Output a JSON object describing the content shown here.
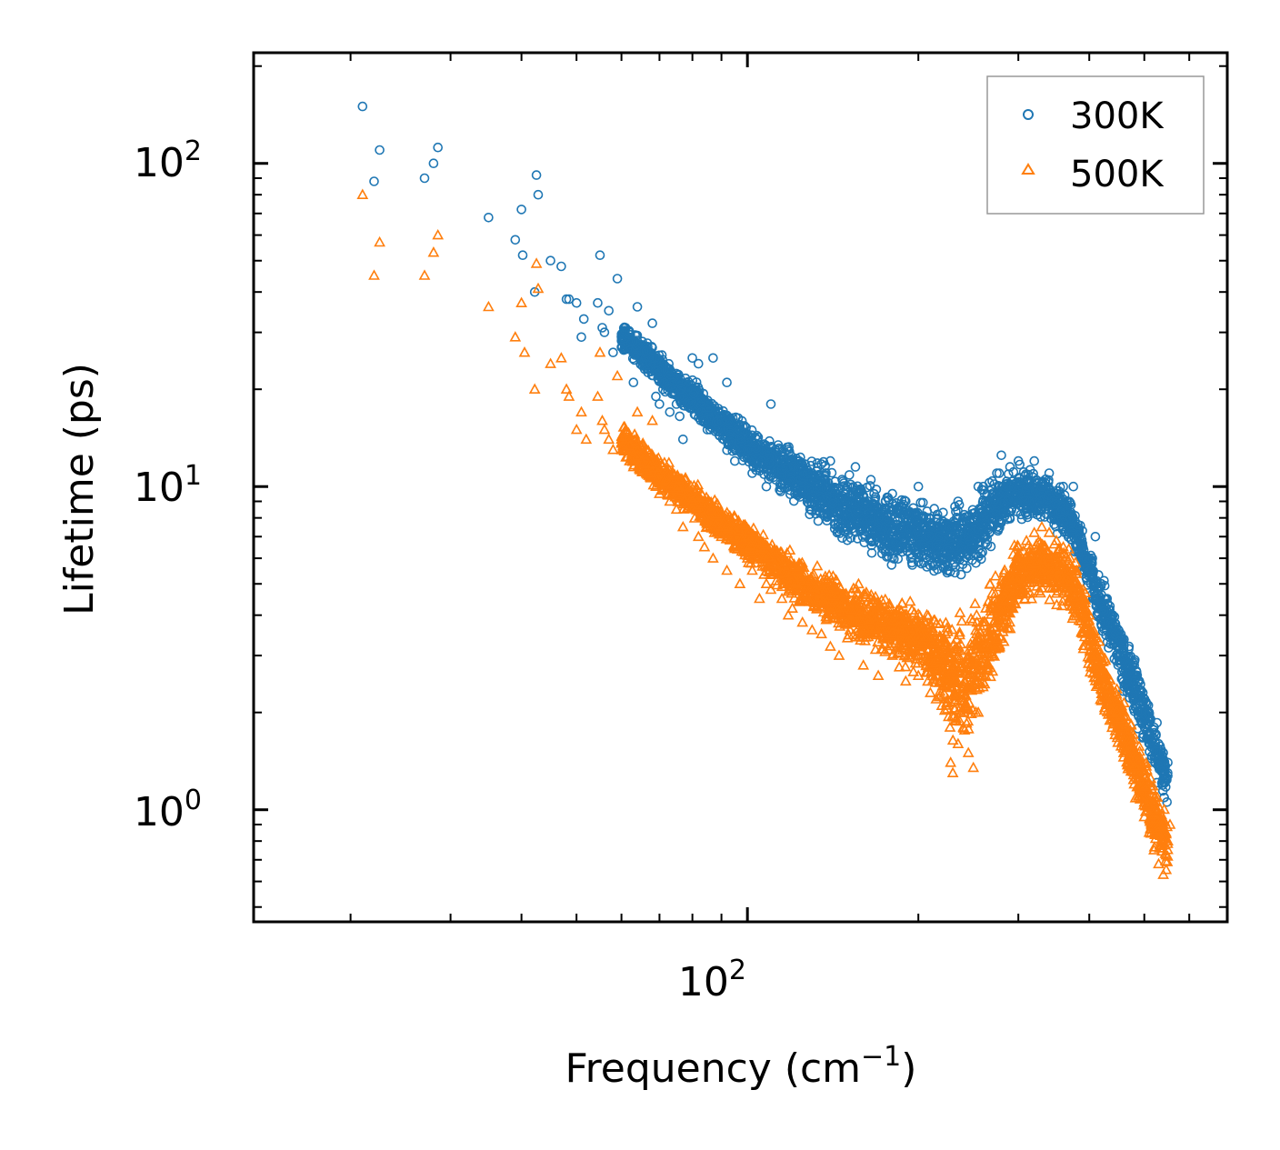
{
  "chart_data": {
    "type": "scatter",
    "xscale": "log",
    "yscale": "log",
    "xlabel": "Frequency (cm",
    "xlabel_sup": "−1",
    "xlabel_suffix": ")",
    "ylabel": "Lifetime (ps)",
    "xlim": [
      13.5,
      700
    ],
    "ylim": [
      0.45,
      220
    ],
    "x_tick_labels": [
      {
        "value": 100,
        "base": "10",
        "exp": "2"
      }
    ],
    "y_tick_labels": [
      {
        "value": 1,
        "base": "10",
        "exp": "0"
      },
      {
        "value": 10,
        "base": "10",
        "exp": "1"
      },
      {
        "value": 100,
        "base": "10",
        "exp": "2"
      }
    ],
    "legend_position": "top-right",
    "series": [
      {
        "name": "300K",
        "marker": "circle",
        "color": "#1f77b4",
        "points": [
          [
            21,
            150
          ],
          [
            22,
            88
          ],
          [
            22.5,
            110
          ],
          [
            27,
            90
          ],
          [
            28,
            100
          ],
          [
            28.5,
            112
          ],
          [
            35,
            68
          ],
          [
            39,
            58
          ],
          [
            40,
            72
          ],
          [
            40.2,
            52
          ],
          [
            42.2,
            40
          ],
          [
            42.5,
            92
          ],
          [
            42.8,
            80
          ],
          [
            45,
            50
          ],
          [
            47,
            48
          ],
          [
            48,
            38
          ],
          [
            48.5,
            38
          ],
          [
            50,
            37
          ],
          [
            51,
            29
          ],
          [
            51.5,
            33
          ],
          [
            54.5,
            37
          ],
          [
            55,
            52
          ],
          [
            55.5,
            31
          ],
          [
            56,
            30
          ],
          [
            57,
            35
          ],
          [
            58,
            26
          ],
          [
            59,
            44
          ],
          [
            60,
            27
          ],
          [
            61,
            31
          ],
          [
            62,
            30
          ],
          [
            63,
            21
          ],
          [
            64,
            36
          ],
          [
            65,
            25
          ],
          [
            67,
            23
          ],
          [
            68,
            32
          ],
          [
            69,
            19
          ],
          [
            70,
            18
          ],
          [
            71,
            20
          ],
          [
            73,
            17
          ],
          [
            74,
            21
          ],
          [
            75,
            18
          ],
          [
            76,
            16.5
          ],
          [
            77,
            14
          ],
          [
            78,
            21
          ],
          [
            80,
            25
          ],
          [
            82,
            24
          ],
          [
            83,
            17
          ],
          [
            84,
            16
          ],
          [
            85,
            15
          ],
          [
            87,
            25
          ],
          [
            90,
            16
          ],
          [
            92,
            21
          ],
          [
            93,
            14.5
          ],
          [
            95,
            12
          ],
          [
            97,
            15
          ],
          [
            100,
            13
          ],
          [
            102,
            11
          ],
          [
            104,
            14
          ],
          [
            106,
            12
          ],
          [
            108,
            10
          ],
          [
            110,
            18
          ],
          [
            112,
            13
          ],
          [
            115,
            11
          ],
          [
            118,
            13
          ],
          [
            120,
            12
          ],
          [
            125,
            10
          ],
          [
            130,
            11
          ],
          [
            135,
            9
          ],
          [
            140,
            12
          ],
          [
            145,
            8
          ],
          [
            150,
            10
          ],
          [
            155,
            11.5
          ],
          [
            160,
            9
          ],
          [
            165,
            10.5
          ],
          [
            170,
            8
          ],
          [
            175,
            9
          ],
          [
            180,
            9.5
          ],
          [
            185,
            8.5
          ],
          [
            190,
            9
          ],
          [
            195,
            7
          ],
          [
            200,
            10
          ],
          [
            205,
            6.5
          ],
          [
            210,
            7.5
          ],
          [
            215,
            6.5
          ],
          [
            225,
            6
          ],
          [
            235,
            9
          ],
          [
            240,
            8
          ],
          [
            245,
            7
          ],
          [
            255,
            10
          ],
          [
            265,
            9
          ],
          [
            275,
            11
          ],
          [
            280,
            12.5
          ],
          [
            285,
            10
          ],
          [
            290,
            11.5
          ],
          [
            300,
            12
          ],
          [
            310,
            10.5
          ],
          [
            320,
            12
          ],
          [
            330,
            10
          ],
          [
            340,
            11
          ],
          [
            350,
            9.5
          ],
          [
            360,
            10
          ],
          [
            370,
            8
          ],
          [
            375,
            10
          ],
          [
            380,
            7
          ],
          [
            390,
            6.5
          ],
          [
            400,
            6
          ],
          [
            405,
            6
          ],
          [
            410,
            7
          ],
          [
            420,
            5
          ],
          [
            430,
            4.5
          ],
          [
            440,
            4
          ],
          [
            450,
            3.6
          ],
          [
            460,
            3
          ],
          [
            470,
            3.2
          ],
          [
            480,
            2.8
          ],
          [
            490,
            2.5
          ],
          [
            500,
            2.2
          ],
          [
            510,
            2
          ],
          [
            520,
            1.8
          ],
          [
            530,
            1.6
          ],
          [
            540,
            1.5
          ],
          [
            550,
            1.4
          ]
        ],
        "band": {
          "x": [
            60,
            80,
            100,
            120,
            150,
            180,
            210,
            230,
            250,
            270,
            300,
            330,
            360,
            380,
            400,
            430,
            460,
            490,
            520,
            550
          ],
          "lo": [
            26,
            16,
            11,
            8.6,
            6.4,
            5.4,
            5.2,
            5.0,
            5.2,
            6.3,
            7.5,
            7.6,
            6.8,
            6.0,
            4.2,
            3.0,
            2.2,
            1.7,
            1.25,
            0.95
          ],
          "hi": [
            33,
            22,
            16,
            13.5,
            11.5,
            10,
            9.3,
            8.8,
            9.7,
            11.5,
            12.3,
            11.5,
            10.2,
            8.8,
            6.8,
            5.0,
            3.8,
            2.8,
            2.1,
            1.6
          ]
        }
      },
      {
        "name": "500K",
        "marker": "triangle",
        "color": "#ff7f0e",
        "points": [
          [
            21,
            80
          ],
          [
            22,
            45
          ],
          [
            22.5,
            57
          ],
          [
            27,
            45
          ],
          [
            28,
            53
          ],
          [
            28.5,
            60
          ],
          [
            35,
            36
          ],
          [
            39,
            29
          ],
          [
            40,
            37
          ],
          [
            40.5,
            26
          ],
          [
            42.2,
            20
          ],
          [
            42.5,
            49
          ],
          [
            42.8,
            41
          ],
          [
            45,
            24
          ],
          [
            47,
            25
          ],
          [
            48,
            20
          ],
          [
            48.5,
            19
          ],
          [
            50,
            15
          ],
          [
            51,
            17
          ],
          [
            52,
            14
          ],
          [
            54.5,
            19
          ],
          [
            55,
            26
          ],
          [
            55.5,
            16
          ],
          [
            56,
            15
          ],
          [
            57,
            14
          ],
          [
            58,
            13
          ],
          [
            59,
            22
          ],
          [
            60,
            14
          ],
          [
            61,
            15
          ],
          [
            62,
            12
          ],
          [
            63,
            11.5
          ],
          [
            64,
            17
          ],
          [
            65,
            12
          ],
          [
            67,
            11
          ],
          [
            68,
            16
          ],
          [
            69,
            10
          ],
          [
            70,
            9.5
          ],
          [
            71,
            10.5
          ],
          [
            73,
            9
          ],
          [
            74,
            11
          ],
          [
            75,
            8.5
          ],
          [
            77,
            7.5
          ],
          [
            78,
            10
          ],
          [
            80,
            9
          ],
          [
            82,
            7
          ],
          [
            83,
            8
          ],
          [
            84,
            6.5
          ],
          [
            85,
            7.5
          ],
          [
            87,
            6
          ],
          [
            90,
            7
          ],
          [
            92,
            5.5
          ],
          [
            95,
            6.5
          ],
          [
            97,
            5
          ],
          [
            100,
            6
          ],
          [
            102,
            5.5
          ],
          [
            105,
            4.5
          ],
          [
            108,
            5
          ],
          [
            110,
            4.8
          ],
          [
            115,
            4.5
          ],
          [
            118,
            4
          ],
          [
            120,
            4.2
          ],
          [
            125,
            3.8
          ],
          [
            130,
            3.6
          ],
          [
            135,
            3.5
          ],
          [
            140,
            3.2
          ],
          [
            145,
            3
          ],
          [
            150,
            3.4
          ],
          [
            160,
            2.8
          ],
          [
            170,
            2.6
          ],
          [
            180,
            3
          ],
          [
            190,
            2.5
          ],
          [
            200,
            2.6
          ],
          [
            210,
            2.3
          ],
          [
            215,
            2.2
          ],
          [
            220,
            2.1
          ],
          [
            225,
            2.05
          ],
          [
            228,
            1.4
          ],
          [
            230,
            1.3
          ],
          [
            235,
            1.6
          ],
          [
            240,
            1.8
          ],
          [
            245,
            1.5
          ],
          [
            250,
            1.35
          ],
          [
            255,
            2
          ],
          [
            260,
            2.4
          ],
          [
            270,
            3
          ],
          [
            280,
            4
          ],
          [
            290,
            5
          ],
          [
            300,
            6
          ],
          [
            310,
            6.8
          ],
          [
            320,
            7.2
          ],
          [
            330,
            7.5
          ],
          [
            340,
            7.2
          ],
          [
            350,
            6.8
          ],
          [
            360,
            6.5
          ],
          [
            370,
            6
          ],
          [
            380,
            5.5
          ],
          [
            390,
            4.8
          ],
          [
            400,
            4
          ],
          [
            410,
            3.3
          ],
          [
            420,
            2.6
          ],
          [
            430,
            2.2
          ],
          [
            440,
            2
          ],
          [
            450,
            1.7
          ],
          [
            460,
            1.5
          ],
          [
            470,
            1.4
          ],
          [
            480,
            1.2
          ],
          [
            490,
            1.1
          ],
          [
            500,
            0.95
          ],
          [
            510,
            0.85
          ],
          [
            520,
            0.75
          ],
          [
            530,
            0.68
          ],
          [
            540,
            0.63
          ],
          [
            550,
            0.8
          ],
          [
            555,
            0.9
          ]
        ],
        "band": {
          "x": [
            60,
            80,
            100,
            120,
            150,
            180,
            210,
            230,
            245,
            260,
            280,
            300,
            330,
            360,
            380,
            400,
            430,
            460,
            490,
            520,
            550
          ],
          "lo": [
            12,
            7.8,
            5.7,
            4.3,
            3.3,
            2.8,
            2.4,
            1.55,
            1.45,
            1.9,
            2.8,
            3.9,
            4.4,
            4.1,
            3.4,
            2.5,
            1.75,
            1.3,
            0.95,
            0.72,
            0.6
          ],
          "hi": [
            16,
            10.5,
            8.0,
            6.4,
            5.3,
            4.7,
            4.4,
            4.3,
            4.4,
            5.0,
            6.2,
            7.0,
            7.7,
            7.1,
            6.3,
            4.6,
            3.2,
            2.3,
            1.75,
            1.3,
            0.95
          ]
        }
      }
    ]
  }
}
